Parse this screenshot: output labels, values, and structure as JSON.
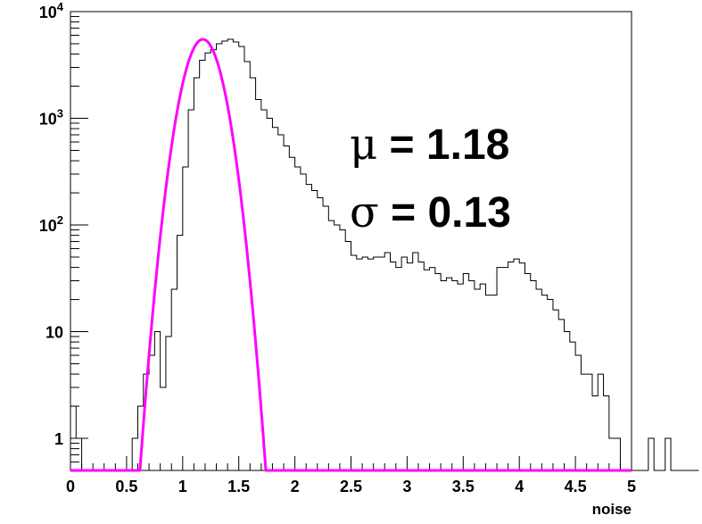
{
  "chart_data": {
    "type": "histogram",
    "xlabel": "noise",
    "ylabel": "",
    "title": "",
    "xlim": [
      0,
      5
    ],
    "ylim": [
      0.5,
      10000
    ],
    "y_scale": "log",
    "grid": false,
    "x_ticks": [
      {
        "value": 0,
        "label": "0"
      },
      {
        "value": 0.5,
        "label": "0.5"
      },
      {
        "value": 1,
        "label": "1"
      },
      {
        "value": 1.5,
        "label": "1.5"
      },
      {
        "value": 2,
        "label": "2"
      },
      {
        "value": 2.5,
        "label": "2.5"
      },
      {
        "value": 3,
        "label": "3"
      },
      {
        "value": 3.5,
        "label": "3.5"
      },
      {
        "value": 4,
        "label": "4"
      },
      {
        "value": 4.5,
        "label": "4.5"
      },
      {
        "value": 5,
        "label": "5"
      }
    ],
    "y_ticks": [
      {
        "value": 1,
        "base": "1",
        "exp": ""
      },
      {
        "value": 10,
        "base": "10",
        "exp": ""
      },
      {
        "value": 100,
        "base": "10",
        "exp": "2"
      },
      {
        "value": 1000,
        "base": "10",
        "exp": "3"
      },
      {
        "value": 10000,
        "base": "10",
        "exp": "4"
      }
    ],
    "histogram": {
      "bin_width": 0.05,
      "x_start": 0,
      "counts": [
        2,
        1,
        0,
        0,
        0,
        0,
        0,
        0,
        0,
        0,
        0,
        1,
        2,
        4,
        6,
        10,
        3,
        9,
        25,
        80,
        350,
        1200,
        2400,
        3500,
        4100,
        4400,
        5000,
        5300,
        5500,
        5200,
        4700,
        3400,
        2400,
        1500,
        1200,
        1000,
        820,
        700,
        550,
        430,
        350,
        300,
        240,
        210,
        180,
        150,
        110,
        100,
        90,
        70,
        52,
        48,
        50,
        48,
        50,
        50,
        55,
        45,
        40,
        50,
        44,
        55,
        45,
        38,
        40,
        35,
        30,
        32,
        30,
        28,
        35,
        30,
        25,
        28,
        22,
        22,
        40,
        40,
        45,
        48,
        44,
        35,
        30,
        25,
        22,
        20,
        16,
        13,
        10,
        8,
        6,
        4,
        4,
        2.5,
        4,
        2.5,
        1,
        1,
        0,
        0,
        0,
        0,
        0,
        1,
        0,
        0,
        1,
        0,
        0,
        0,
        0,
        0
      ]
    },
    "fit": {
      "name": "gaussian",
      "mu": 1.18,
      "sigma": 0.13,
      "amplitude": 5500,
      "color": "#ff00ff"
    },
    "annotations": [
      {
        "symbol": "μ",
        "text": " = 1.18"
      },
      {
        "symbol": "σ",
        "text": " = 0.13"
      }
    ],
    "colors": {
      "histogram": "#000000",
      "fit": "#ff00ff",
      "frame": "#000000"
    }
  }
}
